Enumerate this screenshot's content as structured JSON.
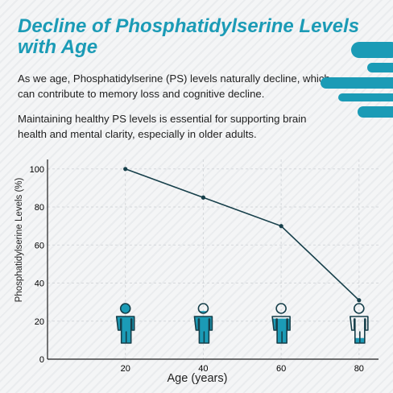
{
  "header": {
    "title": "Decline of Phosphatidylserine Levels with Age",
    "paragraph1": "As we age, Phosphatidylserine (PS) levels naturally decline, which can contribute to memory loss and cognitive decline.",
    "paragraph2": "Maintaining healthy PS levels is essential for supporting brain health and mental clarity, especially in older adults."
  },
  "colors": {
    "accent": "#1b9bb6",
    "line": "#163f4a",
    "text": "#1f1f1f"
  },
  "chart_data": {
    "type": "line",
    "title": "",
    "xlabel": "Age (years)",
    "ylabel": "Phosphatidylserine Levels (%)",
    "x": [
      20,
      40,
      60,
      80
    ],
    "y": [
      100,
      85,
      70,
      31
    ],
    "xticks": [
      "20",
      "40",
      "60",
      "80"
    ],
    "yticks": [
      "0",
      "20",
      "40",
      "60",
      "80",
      "100"
    ],
    "xlim": [
      0,
      85
    ],
    "ylim": [
      0,
      105
    ],
    "grid": true,
    "markers": "person-icon filled to the PS level",
    "fill_levels": [
      1.0,
      0.85,
      0.7,
      0.31
    ]
  }
}
